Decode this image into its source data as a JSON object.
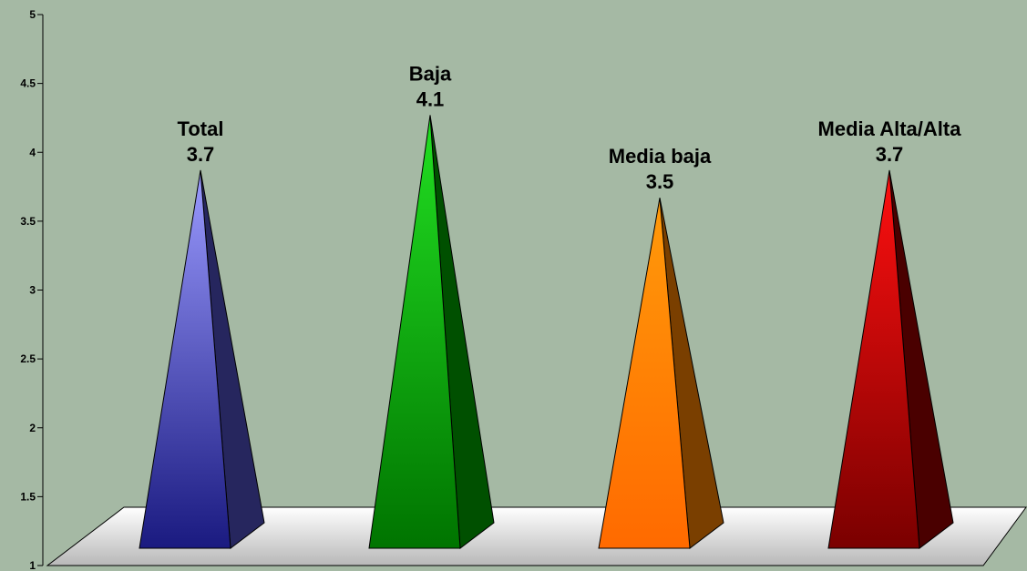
{
  "chart_data": {
    "type": "bar",
    "style": "3d-pyramid",
    "categories": [
      "Total",
      "Baja",
      "Media baja",
      "Media Alta/Alta"
    ],
    "values": [
      3.7,
      4.1,
      3.5,
      3.7
    ],
    "value_labels": [
      "3.7",
      "4.1",
      "3.5",
      "3.7"
    ],
    "ylim": [
      1,
      5
    ],
    "yticks": [
      "1",
      "1.5",
      "2",
      "2.5",
      "3",
      "3.5",
      "4",
      "4.5",
      "5"
    ],
    "grid": false,
    "legend": "none",
    "colors": {
      "background": "#a5b9a4",
      "floor": "#e8e8e8",
      "series": [
        {
          "light": "#9b9bff",
          "dark": "#1a1a80",
          "side": "#26265e"
        },
        {
          "light": "#22e022",
          "dark": "#007400",
          "side": "#005000"
        },
        {
          "light": "#ff9a0a",
          "dark": "#ff6a00",
          "side": "#7a3f00"
        },
        {
          "light": "#ff1010",
          "dark": "#7a0000",
          "side": "#4a0000"
        }
      ]
    }
  }
}
